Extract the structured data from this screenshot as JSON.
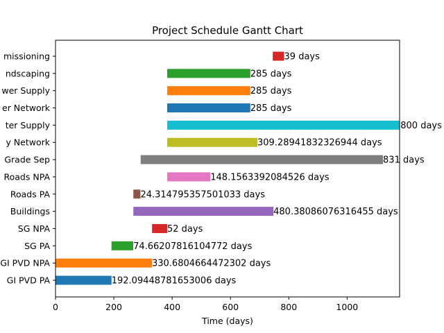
{
  "chart_data": {
    "type": "bar",
    "orientation": "horizontal",
    "title": "Project Schedule Gantt Chart",
    "xlabel": "Time (days)",
    "ylabel": "",
    "xlim": [
      0,
      1180
    ],
    "xticks": [
      "0",
      "200",
      "400",
      "600",
      "800",
      "1000"
    ],
    "xtick_values": [
      0,
      200,
      400,
      600,
      800,
      1000
    ],
    "grid": false,
    "tasks": [
      {
        "name": "GI PVD PA",
        "start": 0,
        "duration": 192.09448781653006,
        "label": "192.09448781653006 days",
        "color": "#1f77b4"
      },
      {
        "name": "GI PVD NPA",
        "start": 0,
        "duration": 330.6804664472302,
        "label": "330.6804664472302 days",
        "color": "#ff7f0e"
      },
      {
        "name": "SG PA",
        "start": 192,
        "duration": 74.66207816104772,
        "label": "74.66207816104772 days",
        "color": "#2ca02c"
      },
      {
        "name": "SG NPA",
        "start": 331,
        "duration": 52,
        "label": "52 days",
        "color": "#d62728"
      },
      {
        "name": "Buildings",
        "start": 267,
        "duration": 480.38086076316455,
        "label": "480.38086076316455 days",
        "color": "#9467bd"
      },
      {
        "name": "Roads PA",
        "start": 267,
        "duration": 24.314795357501033,
        "label": "24.314795357501033 days",
        "color": "#8c564b"
      },
      {
        "name": "Roads NPA",
        "start": 383,
        "duration": 148.1563392084526,
        "label": "148.1563392084526 days",
        "color": "#e377c2"
      },
      {
        "name": "Grade Sep",
        "start": 292,
        "duration": 831,
        "label": "831 days",
        "color": "#7f7f7f"
      },
      {
        "name": "y Network",
        "start": 383,
        "duration": 309.28941832326944,
        "label": "309.28941832326944 days",
        "color": "#bcbd22"
      },
      {
        "name": "ter Supply",
        "start": 383,
        "duration": 800,
        "label": "800 days",
        "color": "#17becf"
      },
      {
        "name": "er Network",
        "start": 383,
        "duration": 285,
        "label": "285 days",
        "color": "#1f77b4"
      },
      {
        "name": "wer Supply",
        "start": 383,
        "duration": 285,
        "label": "285 days",
        "color": "#ff7f0e"
      },
      {
        "name": "ndscaping",
        "start": 383,
        "duration": 285,
        "label": "285 days",
        "color": "#2ca02c"
      },
      {
        "name": "missioning",
        "start": 745,
        "duration": 39,
        "label": "39 days",
        "color": "#d62728"
      }
    ]
  }
}
